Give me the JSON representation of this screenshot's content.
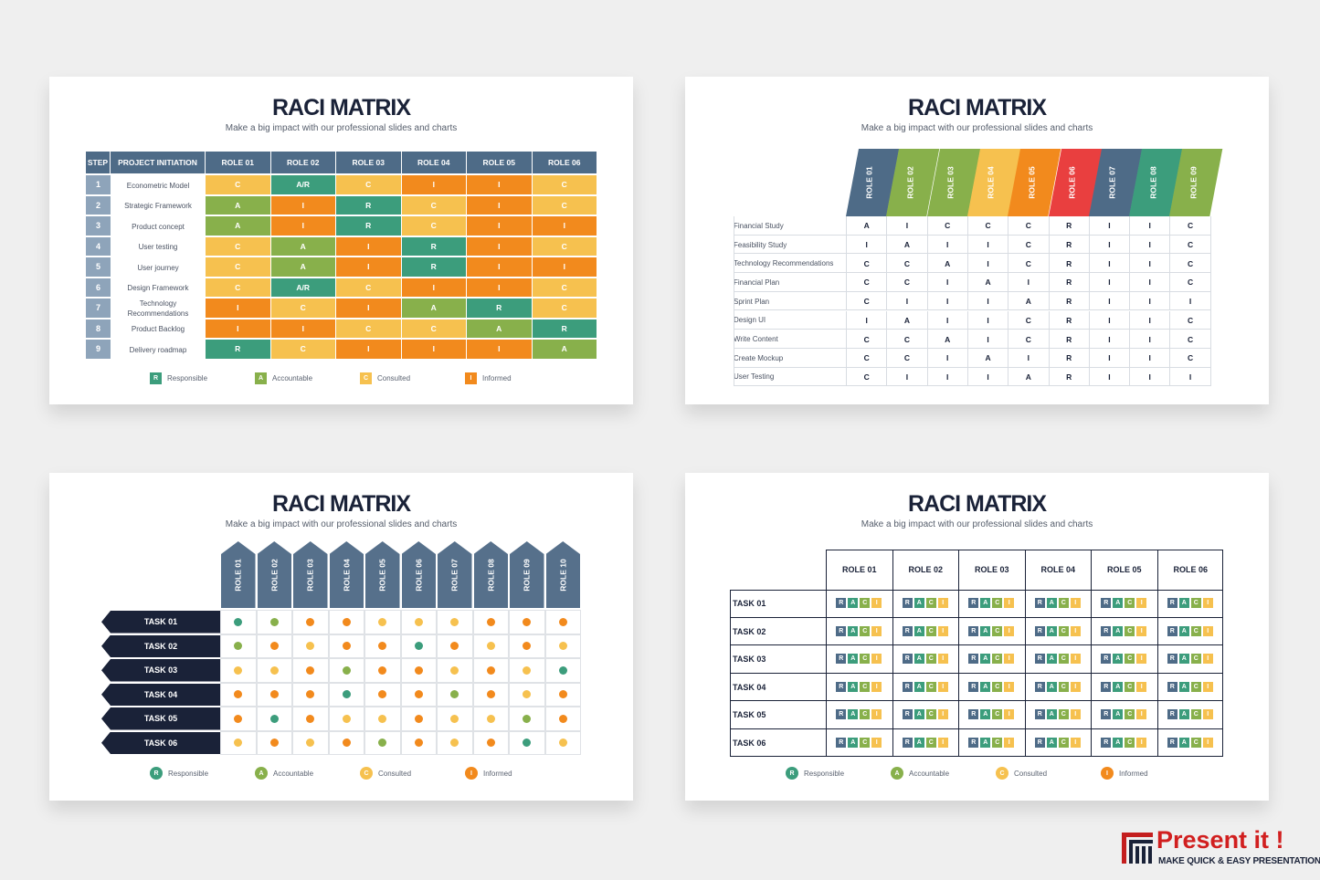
{
  "common": {
    "title": "RACI MATRIX",
    "subtitle": "Make a big impact with our professional slides and charts",
    "legend": {
      "R": "Responsible",
      "A": "Accountable",
      "C": "Consulted",
      "I": "Informed"
    }
  },
  "colors": {
    "R": "#3c9d7c",
    "A": "#88b04b",
    "C": "#f6c14f",
    "I": "#f28a1d",
    "R_bright": "#e93f3f"
  },
  "slide1": {
    "step_label": "STEP",
    "project_label": "PROJECT INITIATION",
    "roles": [
      "ROLE 01",
      "ROLE 02",
      "ROLE 03",
      "ROLE 04",
      "ROLE 05",
      "ROLE 06"
    ],
    "rows": [
      {
        "num": "1",
        "task": "Econometric Model",
        "cells": [
          "C",
          "A/R",
          "C",
          "I",
          "I",
          "C"
        ]
      },
      {
        "num": "2",
        "task": "Strategic Framework",
        "cells": [
          "A",
          "I",
          "R",
          "C",
          "I",
          "C"
        ]
      },
      {
        "num": "3",
        "task": "Product concept",
        "cells": [
          "A",
          "I",
          "R",
          "C",
          "I",
          "I"
        ]
      },
      {
        "num": "4",
        "task": "User testing",
        "cells": [
          "C",
          "A",
          "I",
          "R",
          "I",
          "C"
        ]
      },
      {
        "num": "5",
        "task": "User journey",
        "cells": [
          "C",
          "A",
          "I",
          "R",
          "I",
          "I"
        ]
      },
      {
        "num": "6",
        "task": "Design Framework",
        "cells": [
          "C",
          "A/R",
          "C",
          "I",
          "I",
          "C"
        ]
      },
      {
        "num": "7",
        "task": "Technology Recommendations",
        "cells": [
          "I",
          "C",
          "I",
          "A",
          "R",
          "C"
        ]
      },
      {
        "num": "8",
        "task": "Product Backlog",
        "cells": [
          "I",
          "I",
          "C",
          "C",
          "A",
          "R"
        ]
      },
      {
        "num": "9",
        "task": "Delivery roadmap",
        "cells": [
          "R",
          "C",
          "I",
          "I",
          "I",
          "A"
        ]
      }
    ]
  },
  "slide2": {
    "roles": [
      "ROLE 01",
      "ROLE 02",
      "ROLE 03",
      "ROLE 04",
      "ROLE 05",
      "ROLE 06",
      "ROLE 07",
      "ROLE 08",
      "ROLE 09"
    ],
    "role_colors": [
      "#4e6b87",
      "#88b04b",
      "#88b04b",
      "#f6c14f",
      "#f28a1d",
      "#e93f3f",
      "#4e6b87",
      "#3c9d7c",
      "#88b04b"
    ],
    "rows": [
      {
        "task": "Financial Study",
        "cells": [
          "A",
          "I",
          "C",
          "C",
          "C",
          "R",
          "I",
          "I",
          "C"
        ]
      },
      {
        "task": "Feasibility Study",
        "cells": [
          "I",
          "A",
          "I",
          "I",
          "C",
          "R",
          "I",
          "I",
          "C"
        ]
      },
      {
        "task": "Technology Recommendations",
        "cells": [
          "C",
          "C",
          "A",
          "I",
          "C",
          "R",
          "I",
          "I",
          "C"
        ]
      },
      {
        "task": "Financial Plan",
        "cells": [
          "C",
          "C",
          "I",
          "A",
          "I",
          "R",
          "I",
          "I",
          "C"
        ]
      },
      {
        "task": "Sprint Plan",
        "cells": [
          "C",
          "I",
          "I",
          "I",
          "A",
          "R",
          "I",
          "I",
          "I"
        ]
      },
      {
        "task": "Design UI",
        "cells": [
          "I",
          "A",
          "I",
          "I",
          "C",
          "R",
          "I",
          "I",
          "C"
        ]
      },
      {
        "task": "Write Content",
        "cells": [
          "C",
          "C",
          "A",
          "I",
          "C",
          "R",
          "I",
          "I",
          "C"
        ]
      },
      {
        "task": "Create Mockup",
        "cells": [
          "C",
          "C",
          "I",
          "A",
          "I",
          "R",
          "I",
          "I",
          "C"
        ]
      },
      {
        "task": "User Testing",
        "cells": [
          "C",
          "I",
          "I",
          "I",
          "A",
          "R",
          "I",
          "I",
          "I"
        ]
      }
    ]
  },
  "slide3": {
    "roles": [
      "ROLE 01",
      "ROLE 02",
      "ROLE 03",
      "ROLE 04",
      "ROLE 05",
      "ROLE 06",
      "ROLE 07",
      "ROLE 08",
      "ROLE 09",
      "ROLE 10"
    ],
    "tasks": [
      "TASK 01",
      "TASK 02",
      "TASK 03",
      "TASK 04",
      "TASK 05",
      "TASK 06"
    ],
    "dots": [
      [
        "R",
        "A",
        "I",
        "I",
        "C",
        "C",
        "C",
        "I",
        "I",
        "I"
      ],
      [
        "A",
        "I",
        "C",
        "I",
        "I",
        "R",
        "I",
        "C",
        "I",
        "C"
      ],
      [
        "C",
        "C",
        "I",
        "A",
        "I",
        "I",
        "C",
        "I",
        "C",
        "R"
      ],
      [
        "I",
        "I",
        "I",
        "R",
        "I",
        "I",
        "A",
        "I",
        "C",
        "I"
      ],
      [
        "I",
        "R",
        "I",
        "C",
        "C",
        "I",
        "C",
        "C",
        "A",
        "I"
      ],
      [
        "C",
        "I",
        "C",
        "I",
        "A",
        "I",
        "C",
        "I",
        "R",
        "C"
      ]
    ]
  },
  "slide4": {
    "roles": [
      "ROLE 01",
      "ROLE 02",
      "ROLE 03",
      "ROLE 04",
      "ROLE 05",
      "ROLE 06"
    ],
    "tasks": [
      "TASK 01",
      "TASK 02",
      "TASK 03",
      "TASK 04",
      "TASK 05",
      "TASK 06"
    ],
    "raci_letters": [
      "R",
      "A",
      "C",
      "I"
    ]
  },
  "logo": {
    "brand": "Present it !",
    "tagline": "MAKE QUICK & EASY PRESENTATIONS"
  }
}
